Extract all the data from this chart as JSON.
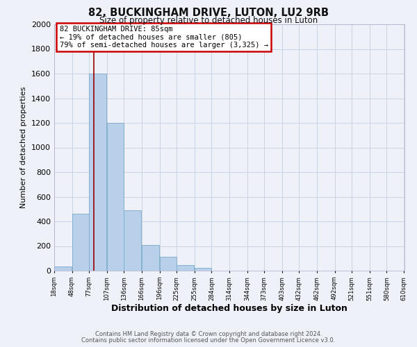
{
  "title": "82, BUCKINGHAM DRIVE, LUTON, LU2 9RB",
  "subtitle": "Size of property relative to detached houses in Luton",
  "xlabel": "Distribution of detached houses by size in Luton",
  "ylabel": "Number of detached properties",
  "bar_left_edges": [
    18,
    48,
    77,
    107,
    136,
    166,
    196,
    225,
    255,
    284,
    314,
    344,
    373,
    403,
    432,
    462,
    492,
    521,
    551,
    580
  ],
  "bar_heights": [
    35,
    460,
    1600,
    1200,
    490,
    210,
    115,
    45,
    20,
    0,
    0,
    0,
    0,
    0,
    0,
    0,
    0,
    0,
    0,
    0
  ],
  "bin_width": 29,
  "bar_color": "#b8d0ea",
  "bar_edge_color": "#7aaac8",
  "background_color": "#eef2f8",
  "plot_bg_color": "#eef2f8",
  "grid_color": "#c5cfe0",
  "vline_x": 85,
  "vline_color": "#990000",
  "annotation_line1": "82 BUCKINGHAM DRIVE: 85sqm",
  "annotation_line2": "← 19% of detached houses are smaller (805)",
  "annotation_line3": "79% of semi-detached houses are larger (3,325) →",
  "annotation_box_color": "#ffffff",
  "annotation_box_edge": "#cc0000",
  "xlim_min": 18,
  "xlim_max": 610,
  "ylim_min": 0,
  "ylim_max": 2000,
  "yticks": [
    0,
    200,
    400,
    600,
    800,
    1000,
    1200,
    1400,
    1600,
    1800,
    2000
  ],
  "xtick_labels": [
    "18sqm",
    "48sqm",
    "77sqm",
    "107sqm",
    "136sqm",
    "166sqm",
    "196sqm",
    "225sqm",
    "255sqm",
    "284sqm",
    "314sqm",
    "344sqm",
    "373sqm",
    "403sqm",
    "432sqm",
    "462sqm",
    "492sqm",
    "521sqm",
    "551sqm",
    "580sqm",
    "610sqm"
  ],
  "footer_line1": "Contains HM Land Registry data © Crown copyright and database right 2024.",
  "footer_line2": "Contains public sector information licensed under the Open Government Licence v3.0."
}
